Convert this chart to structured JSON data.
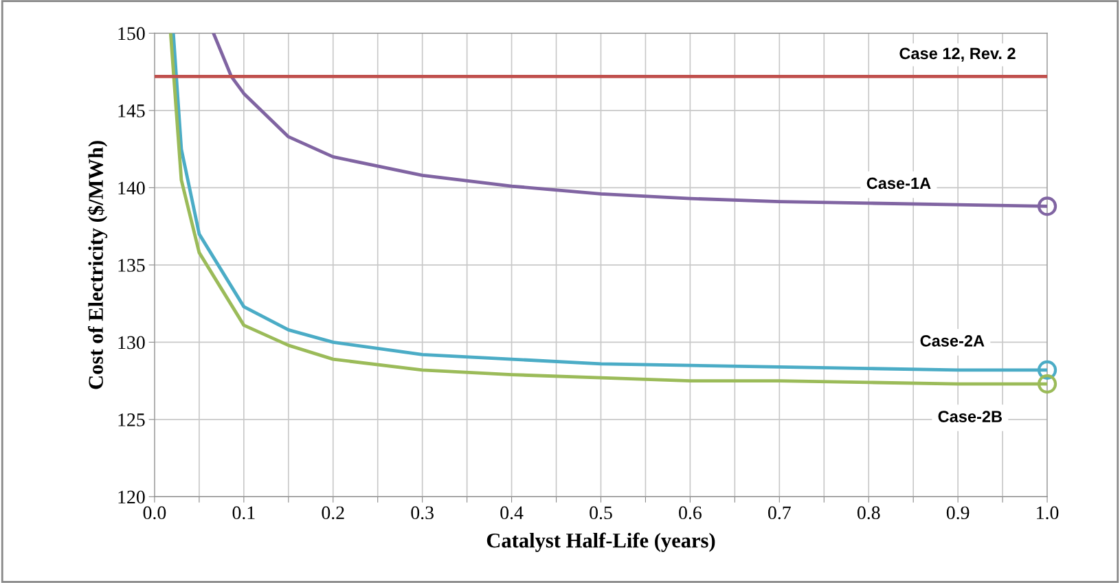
{
  "chart_data": {
    "type": "line",
    "xlabel": "Catalyst Half-Life (years)",
    "ylabel": "Cost of Electricity ($/MWh)",
    "xlim": [
      0.0,
      1.0
    ],
    "ylim": [
      120,
      150
    ],
    "xticks": [
      {
        "value": 0.0,
        "label": "0.0"
      },
      {
        "value": 0.05,
        "label": null
      },
      {
        "value": 0.1,
        "label": "0.1"
      },
      {
        "value": 0.15,
        "label": null
      },
      {
        "value": 0.2,
        "label": "0.2"
      },
      {
        "value": 0.25,
        "label": null
      },
      {
        "value": 0.3,
        "label": "0.3"
      },
      {
        "value": 0.35,
        "label": null
      },
      {
        "value": 0.4,
        "label": "0.4"
      },
      {
        "value": 0.45,
        "label": null
      },
      {
        "value": 0.5,
        "label": "0.5"
      },
      {
        "value": 0.55,
        "label": null
      },
      {
        "value": 0.6,
        "label": "0.6"
      },
      {
        "value": 0.65,
        "label": null
      },
      {
        "value": 0.7,
        "label": "0.7"
      },
      {
        "value": 0.75,
        "label": null
      },
      {
        "value": 0.8,
        "label": "0.8"
      },
      {
        "value": 0.85,
        "label": null
      },
      {
        "value": 0.9,
        "label": "0.9"
      },
      {
        "value": 0.95,
        "label": null
      },
      {
        "value": 1.0,
        "label": "1.0"
      }
    ],
    "yticks": [
      120,
      125,
      130,
      135,
      140,
      145,
      150
    ],
    "grid": true,
    "ref_lines": [
      {
        "axis": "y",
        "value": 147.2,
        "label": "Case 12, Rev. 2",
        "color": "#c0504d"
      }
    ],
    "series": [
      {
        "name": "Case-1A",
        "color": "#8064a2",
        "x": [
          0.066,
          0.086,
          0.1,
          0.15,
          0.2,
          0.3,
          0.4,
          0.5,
          0.6,
          0.7,
          0.8,
          0.9,
          1.0
        ],
        "values": [
          150,
          147.2,
          146.1,
          143.3,
          142.0,
          140.8,
          140.1,
          139.6,
          139.3,
          139.1,
          139.0,
          138.9,
          138.8
        ]
      },
      {
        "name": "Case-2A",
        "color": "#4bacc6",
        "x": [
          0.021,
          0.03,
          0.05,
          0.1,
          0.15,
          0.2,
          0.3,
          0.4,
          0.5,
          0.6,
          0.7,
          0.8,
          0.9,
          1.0
        ],
        "values": [
          150,
          142.5,
          137.0,
          132.3,
          130.8,
          130.0,
          129.2,
          128.9,
          128.6,
          128.5,
          128.4,
          128.3,
          128.2,
          128.2
        ]
      },
      {
        "name": "Case-2B",
        "color": "#9bbb59",
        "x": [
          0.018,
          0.03,
          0.05,
          0.1,
          0.15,
          0.2,
          0.3,
          0.4,
          0.5,
          0.6,
          0.7,
          0.8,
          0.9,
          1.0
        ],
        "values": [
          150,
          140.5,
          135.8,
          131.1,
          129.8,
          128.9,
          128.2,
          127.9,
          127.7,
          127.5,
          127.5,
          127.4,
          127.3,
          127.3
        ]
      },
      {
        "type": "scatter",
        "marker": "circle",
        "color": "#8064a2",
        "x": [
          1.0
        ],
        "values": [
          138.8
        ]
      },
      {
        "type": "scatter",
        "marker": "circle",
        "color": "#4bacc6",
        "x": [
          1.0
        ],
        "values": [
          128.2
        ]
      },
      {
        "type": "scatter",
        "marker": "circle",
        "color": "#9bbb59",
        "x": [
          1.0
        ],
        "values": [
          127.3
        ]
      }
    ]
  }
}
